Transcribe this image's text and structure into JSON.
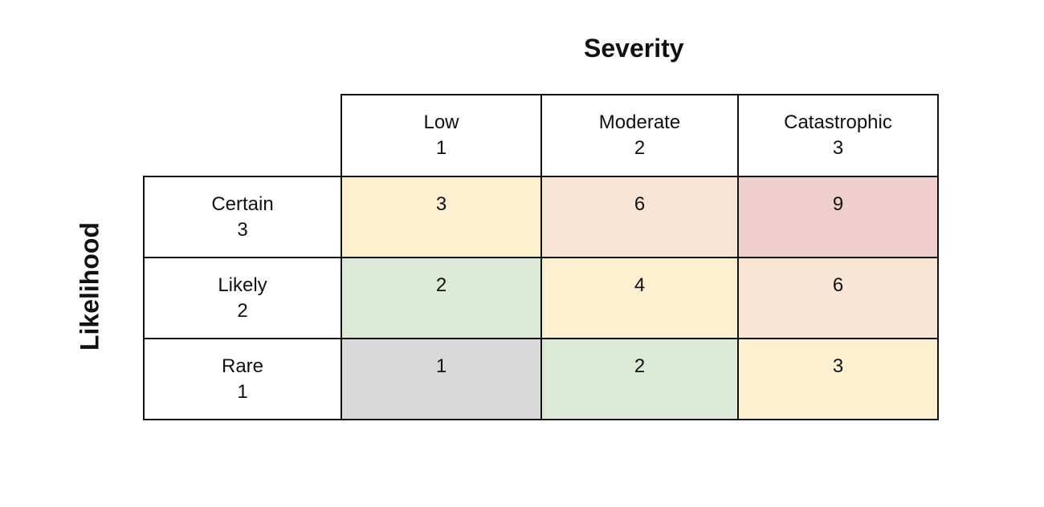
{
  "severity": {
    "title": "Severity",
    "columns": [
      {
        "label": "Low",
        "score": "1"
      },
      {
        "label": "Moderate",
        "score": "2"
      },
      {
        "label": "Catastrophic",
        "score": "3"
      }
    ]
  },
  "likelihood": {
    "title": "Likelihood",
    "rows": [
      {
        "label": "Certain",
        "score": "3",
        "cells": [
          "3",
          "6",
          "9"
        ]
      },
      {
        "label": "Likely",
        "score": "2",
        "cells": [
          "2",
          "4",
          "6"
        ]
      },
      {
        "label": "Rare",
        "score": "1",
        "cells": [
          "1",
          "2",
          "3"
        ]
      }
    ]
  },
  "colors": {
    "yellow": "#fcf0d0",
    "orange": "#f8e5d3",
    "red": "#efcfce",
    "green": "#dce9d6",
    "gray": "#d9d9d9",
    "border": "#111111"
  },
  "cell_colors": [
    [
      "yellow",
      "orange",
      "red"
    ],
    [
      "green",
      "yellow",
      "orange"
    ],
    [
      "gray",
      "green",
      "yellow"
    ]
  ]
}
